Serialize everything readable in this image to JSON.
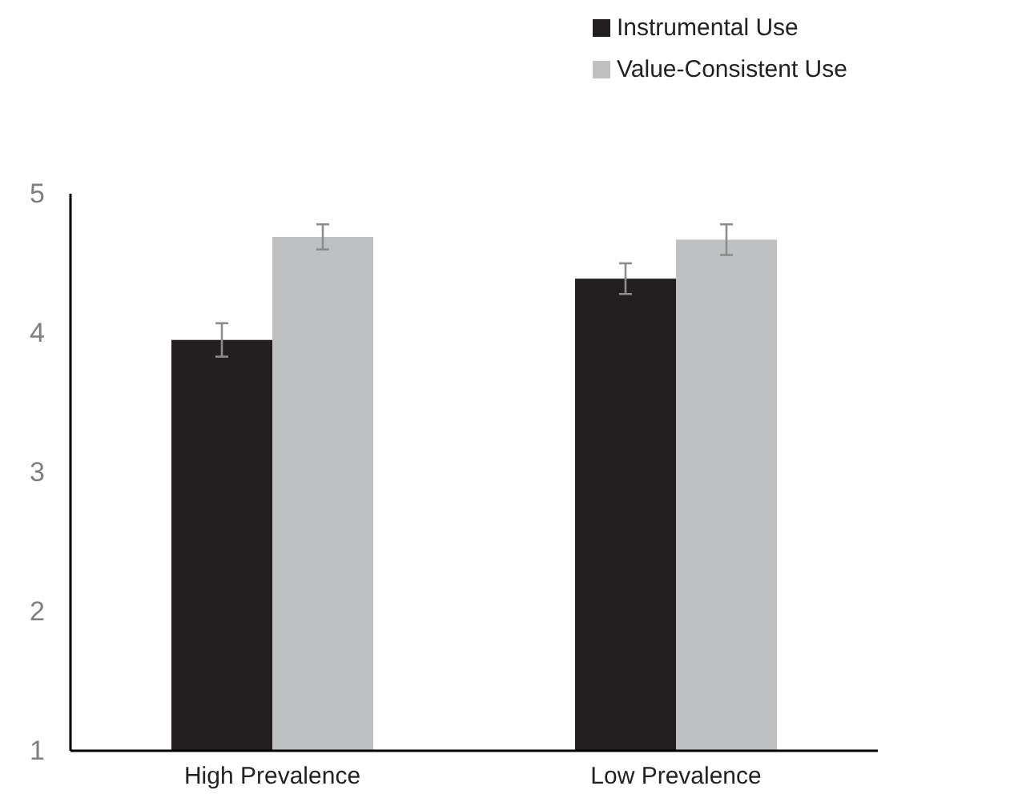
{
  "chart_data": {
    "type": "bar",
    "categories": [
      "High Prevalence",
      "Low Prevalence"
    ],
    "series": [
      {
        "name": "Instrumental Use",
        "color": "#231f20",
        "values": [
          3.95,
          4.39
        ],
        "errors": [
          0.12,
          0.11
        ]
      },
      {
        "name": "Value-Consistent Use",
        "color": "#bfc0c2",
        "values": [
          4.69,
          4.67
        ],
        "errors": [
          0.09,
          0.11
        ]
      }
    ],
    "ylim": [
      1,
      5
    ],
    "yticks": [
      1,
      2,
      3,
      4,
      5
    ],
    "grid": false,
    "legend": "top right"
  }
}
